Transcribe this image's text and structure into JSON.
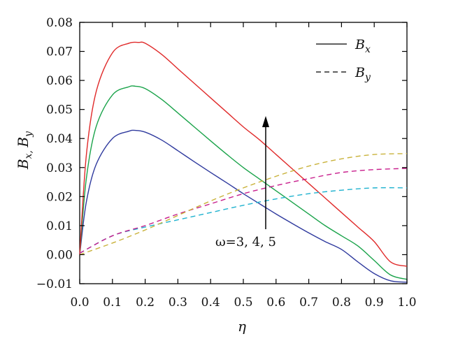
{
  "chart_data": {
    "type": "line",
    "xlabel": "η",
    "ylabel": "Bx, By",
    "xlim": [
      0.0,
      1.0
    ],
    "ylim": [
      -0.01,
      0.08
    ],
    "x_ticks": [
      "0.0",
      "0.1",
      "0.2",
      "0.3",
      "0.4",
      "0.5",
      "0.6",
      "0.7",
      "0.8",
      "0.9",
      "1.0"
    ],
    "y_ticks": [
      "−0.01",
      "0.00",
      "0.01",
      "0.02",
      "0.03",
      "0.04",
      "0.05",
      "0.06",
      "0.07",
      "0.08"
    ],
    "grid": false,
    "legend_position": "top-right",
    "legend": [
      {
        "label": "Bx",
        "style": "solid"
      },
      {
        "label": "By",
        "style": "dashed"
      }
    ],
    "annotation": "ω=3, 4, 5",
    "series": [
      {
        "group": "Bx",
        "omega": 3,
        "color": "#2f3a9e",
        "style": "solid",
        "x": [
          0.0,
          0.02,
          0.05,
          0.1,
          0.15,
          0.17,
          0.2,
          0.25,
          0.3,
          0.35,
          0.4,
          0.45,
          0.5,
          0.55,
          0.6,
          0.65,
          0.7,
          0.75,
          0.8,
          0.85,
          0.9,
          0.95,
          1.0
        ],
        "y": [
          0.0,
          0.018,
          0.031,
          0.04,
          0.0425,
          0.0428,
          0.0422,
          0.0395,
          0.0358,
          0.032,
          0.0283,
          0.0247,
          0.021,
          0.0175,
          0.014,
          0.0107,
          0.0075,
          0.0045,
          0.0018,
          -0.0025,
          -0.0065,
          -0.009,
          -0.0095
        ]
      },
      {
        "group": "Bx",
        "omega": 4,
        "color": "#1aa34a",
        "style": "solid",
        "x": [
          0.0,
          0.02,
          0.05,
          0.1,
          0.15,
          0.17,
          0.2,
          0.25,
          0.3,
          0.35,
          0.4,
          0.45,
          0.5,
          0.55,
          0.6,
          0.65,
          0.7,
          0.75,
          0.8,
          0.85,
          0.9,
          0.95,
          1.0
        ],
        "y": [
          0.0,
          0.026,
          0.044,
          0.055,
          0.0578,
          0.058,
          0.0572,
          0.0535,
          0.0488,
          0.044,
          0.0392,
          0.0345,
          0.03,
          0.026,
          0.022,
          0.018,
          0.014,
          0.01,
          0.0065,
          0.003,
          -0.002,
          -0.007,
          -0.0085
        ]
      },
      {
        "group": "Bx",
        "omega": 5,
        "color": "#e02a2a",
        "style": "solid",
        "x": [
          0.0,
          0.02,
          0.05,
          0.1,
          0.15,
          0.18,
          0.2,
          0.25,
          0.3,
          0.35,
          0.4,
          0.45,
          0.5,
          0.55,
          0.6,
          0.65,
          0.7,
          0.75,
          0.8,
          0.85,
          0.9,
          0.95,
          1.0
        ],
        "y": [
          0.0,
          0.034,
          0.056,
          0.0695,
          0.0728,
          0.0731,
          0.0728,
          0.069,
          0.064,
          0.059,
          0.054,
          0.049,
          0.044,
          0.0395,
          0.0345,
          0.0295,
          0.0245,
          0.0195,
          0.0145,
          0.0095,
          0.0045,
          -0.0025,
          -0.004
        ]
      },
      {
        "group": "By",
        "omega": 3,
        "color": "#1fb2cf",
        "style": "dashed",
        "x": [
          0.0,
          0.1,
          0.2,
          0.3,
          0.4,
          0.5,
          0.6,
          0.7,
          0.8,
          0.9,
          1.0
        ],
        "y": [
          0.0005,
          0.0065,
          0.0095,
          0.012,
          0.0145,
          0.017,
          0.0192,
          0.021,
          0.0222,
          0.023,
          0.023
        ]
      },
      {
        "group": "By",
        "omega": 4,
        "color": "#c81d8c",
        "style": "dashed",
        "x": [
          0.0,
          0.1,
          0.2,
          0.3,
          0.4,
          0.5,
          0.6,
          0.7,
          0.8,
          0.9,
          1.0
        ],
        "y": [
          0.0005,
          0.0065,
          0.01,
          0.014,
          0.0175,
          0.021,
          0.0238,
          0.0262,
          0.0283,
          0.0293,
          0.0297
        ]
      },
      {
        "group": "By",
        "omega": 5,
        "color": "#c9b23a",
        "style": "dashed",
        "x": [
          0.0,
          0.1,
          0.2,
          0.3,
          0.4,
          0.5,
          0.6,
          0.7,
          0.8,
          0.9,
          1.0
        ],
        "y": [
          0.0,
          0.004,
          0.0085,
          0.0135,
          0.0185,
          0.023,
          0.027,
          0.0305,
          0.033,
          0.0345,
          0.0348
        ]
      }
    ]
  }
}
